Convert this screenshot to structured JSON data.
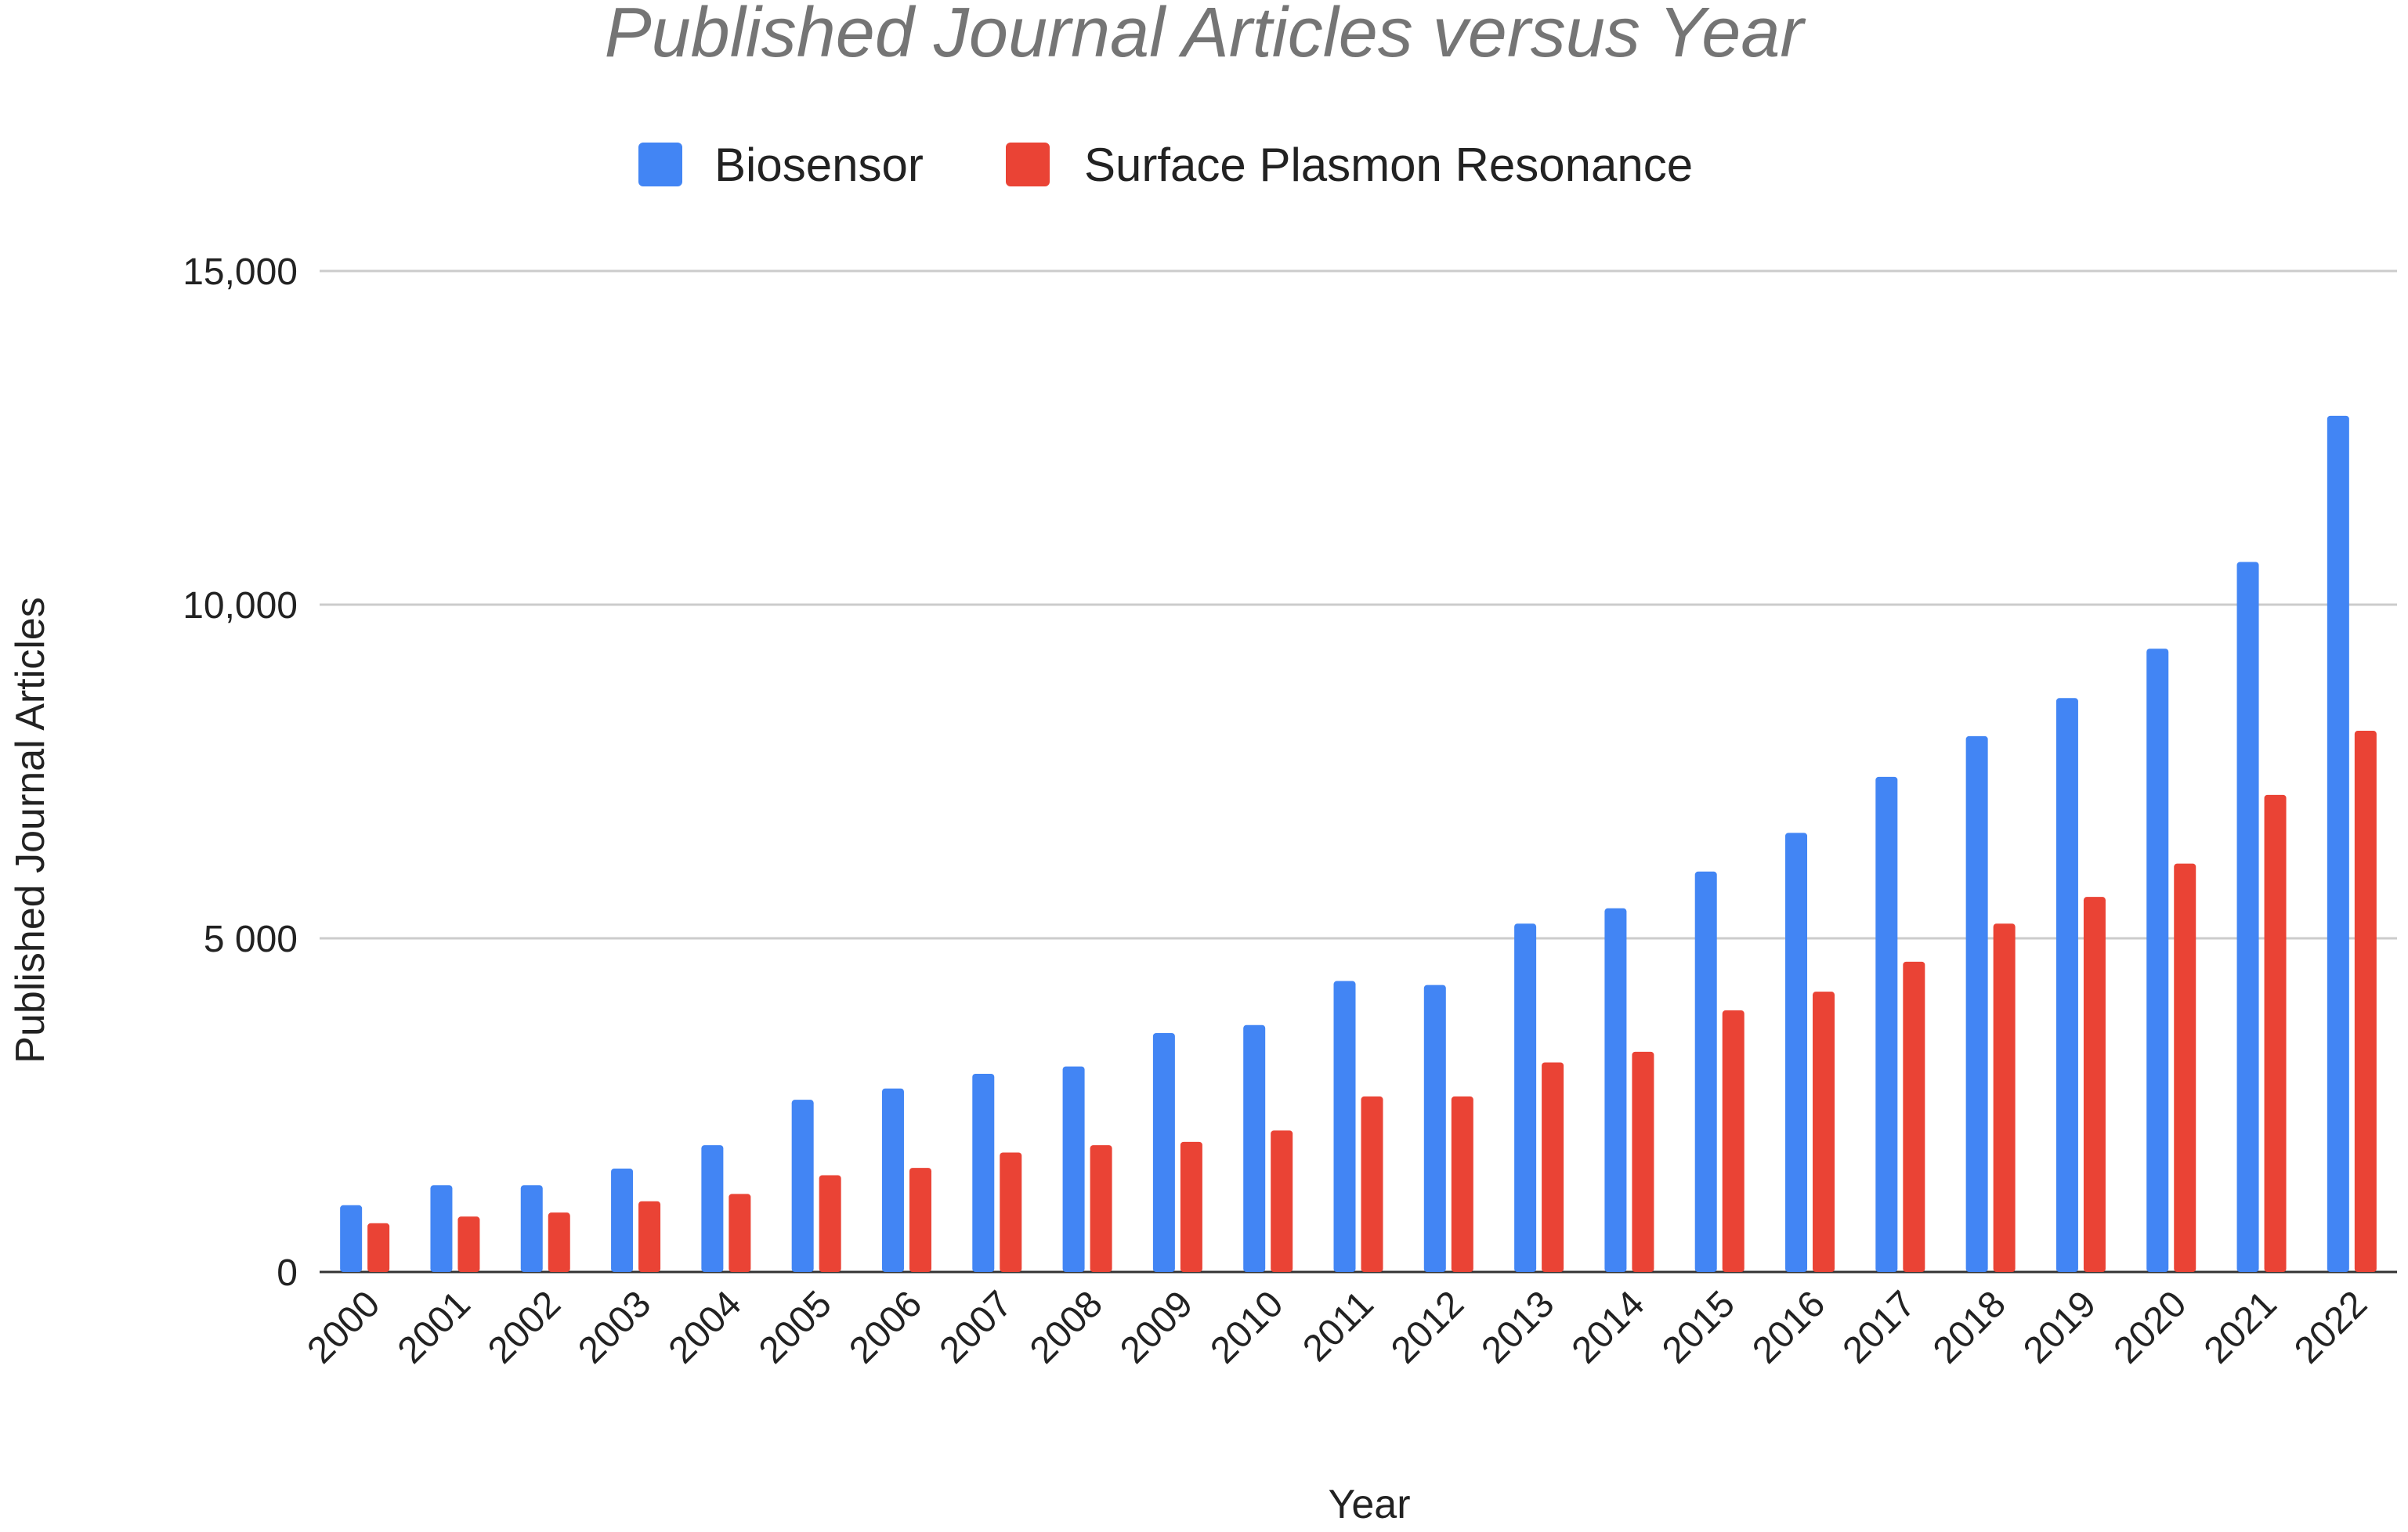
{
  "chart_data": {
    "type": "bar",
    "title": "Published Journal Articles versus Year",
    "xlabel": "Year",
    "ylabel": "Published Journal Articles",
    "categories": [
      "2000",
      "2001",
      "2002",
      "2003",
      "2004",
      "2005",
      "2006",
      "2007",
      "2008",
      "2009",
      "2010",
      "2011",
      "2012",
      "2013",
      "2014",
      "2015",
      "2016",
      "2017",
      "2018",
      "2019",
      "2020",
      "2021",
      "2022"
    ],
    "series": [
      {
        "name": "Biosensor",
        "color": "#4285f4",
        "values": [
          1000,
          1300,
          1300,
          1550,
          1900,
          2580,
          2750,
          2970,
          3080,
          3580,
          3700,
          4360,
          4300,
          5220,
          5450,
          6000,
          6580,
          7420,
          8030,
          8600,
          9340,
          10640,
          12830
        ]
      },
      {
        "name": "Surface Plasmon Resonance",
        "color": "#ea4335",
        "values": [
          730,
          830,
          890,
          1060,
          1170,
          1450,
          1560,
          1790,
          1900,
          1950,
          2120,
          2630,
          2630,
          3140,
          3300,
          3920,
          4200,
          4650,
          5220,
          5620,
          6120,
          7150,
          8110
        ]
      }
    ],
    "ylim": [
      0,
      15000
    ],
    "y_ticks": [
      {
        "value": 0,
        "label": "0"
      },
      {
        "value": 5000,
        "label": "5 000"
      },
      {
        "value": 10000,
        "label": "10,000"
      },
      {
        "value": 15000,
        "label": "15,000"
      }
    ],
    "grid": true,
    "legend_position": "top-center",
    "x_tick_rotation": "diagonal"
  }
}
